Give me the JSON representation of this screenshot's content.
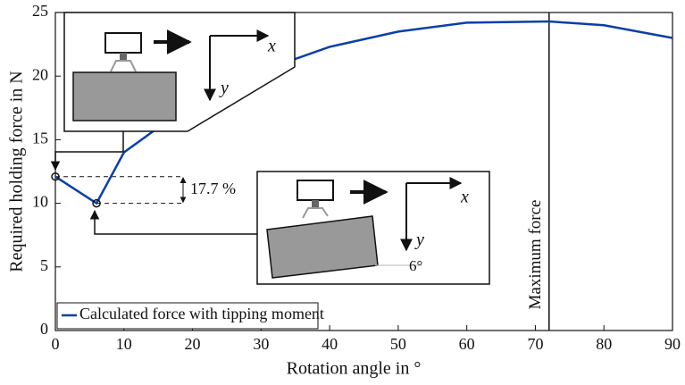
{
  "chart_data": {
    "type": "line",
    "x_label": "Rotation angle in °",
    "y_label": "Required holding force in N",
    "xlim": [
      0,
      90
    ],
    "xticks": [
      0,
      10,
      20,
      30,
      40,
      50,
      60,
      70,
      80,
      90
    ],
    "ylim": [
      0,
      25
    ],
    "yticks": [
      0,
      5,
      10,
      15,
      20,
      25
    ],
    "x": [
      0,
      6,
      10,
      20,
      30,
      40,
      50,
      60,
      72,
      80,
      90
    ],
    "series": [
      {
        "name": "Calculated force with tipping moment",
        "color": "#0a3fa8",
        "values": [
          12.1,
          10.0,
          14.0,
          17.9,
          20.4,
          22.3,
          23.5,
          24.2,
          24.3,
          24.0,
          23.0
        ]
      }
    ],
    "max_force_x": 72,
    "annotations": {
      "max_label": "Maximum force",
      "drop_label": "17.7 %",
      "inset1": {
        "x_axis": "x",
        "y_axis": "y"
      },
      "inset2": {
        "x_axis": "x",
        "y_axis": "y",
        "angle": "6°"
      }
    }
  }
}
